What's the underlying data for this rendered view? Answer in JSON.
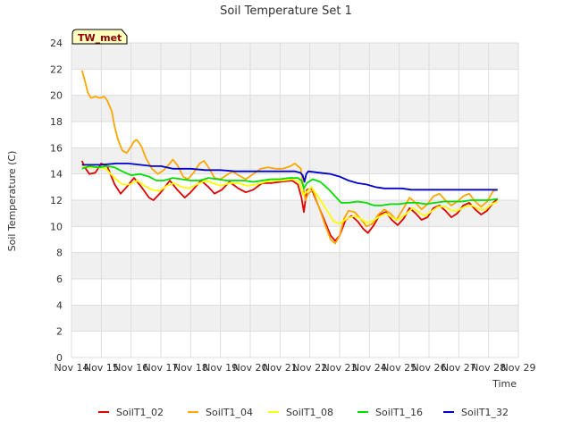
{
  "chart_data": {
    "type": "line",
    "title": "Soil Temperature Set 1",
    "xlabel": "Time",
    "ylabel": "Soil Temperature (C)",
    "badge": "TW_met",
    "xlim": [
      14,
      29
    ],
    "ylim": [
      0,
      24
    ],
    "x_ticks": [
      14,
      15,
      16,
      17,
      18,
      19,
      20,
      21,
      22,
      23,
      24,
      25,
      26,
      27,
      28,
      29
    ],
    "x_tick_labels": [
      "Nov 14",
      "Nov 15",
      "Nov 16",
      "Nov 17",
      "Nov 18",
      "Nov 19",
      "Nov 20",
      "Nov 21",
      "Nov 22",
      "Nov 23",
      "Nov 24",
      "Nov 25",
      "Nov 26",
      "Nov 27",
      "Nov 28",
      "Nov 29"
    ],
    "y_ticks": [
      0,
      2,
      4,
      6,
      8,
      10,
      12,
      14,
      16,
      18,
      20,
      22,
      24
    ],
    "y_tick_labels": [
      "0",
      "2",
      "4",
      "6",
      "8",
      "10",
      "12",
      "14",
      "16",
      "18",
      "20",
      "22",
      "24"
    ],
    "grid": true,
    "legend_placement": "bottom",
    "series": [
      {
        "name": "SoilT1_02",
        "color": "#dd0000",
        "points": [
          [
            14.35,
            15.0
          ],
          [
            14.45,
            14.5
          ],
          [
            14.6,
            14.0
          ],
          [
            14.8,
            14.1
          ],
          [
            15.0,
            14.8
          ],
          [
            15.2,
            14.6
          ],
          [
            15.45,
            13.2
          ],
          [
            15.65,
            12.5
          ],
          [
            15.85,
            13.0
          ],
          [
            16.1,
            13.7
          ],
          [
            16.35,
            13.0
          ],
          [
            16.6,
            12.2
          ],
          [
            16.75,
            12.0
          ],
          [
            17.0,
            12.6
          ],
          [
            17.3,
            13.5
          ],
          [
            17.55,
            12.8
          ],
          [
            17.8,
            12.2
          ],
          [
            18.0,
            12.6
          ],
          [
            18.35,
            13.5
          ],
          [
            18.6,
            13.0
          ],
          [
            18.8,
            12.5
          ],
          [
            19.05,
            12.8
          ],
          [
            19.3,
            13.4
          ],
          [
            19.6,
            12.9
          ],
          [
            19.85,
            12.6
          ],
          [
            20.1,
            12.8
          ],
          [
            20.4,
            13.3
          ],
          [
            20.7,
            13.3
          ],
          [
            21.0,
            13.4
          ],
          [
            21.4,
            13.5
          ],
          [
            21.6,
            13.2
          ],
          [
            21.72,
            12.2
          ],
          [
            21.8,
            11.1
          ],
          [
            21.9,
            12.8
          ],
          [
            22.05,
            12.9
          ],
          [
            22.3,
            11.5
          ],
          [
            22.5,
            10.4
          ],
          [
            22.7,
            9.3
          ],
          [
            22.85,
            8.9
          ],
          [
            23.0,
            9.3
          ],
          [
            23.2,
            10.5
          ],
          [
            23.4,
            10.8
          ],
          [
            23.6,
            10.4
          ],
          [
            23.8,
            9.8
          ],
          [
            23.95,
            9.5
          ],
          [
            24.15,
            10.1
          ],
          [
            24.35,
            10.9
          ],
          [
            24.55,
            11.1
          ],
          [
            24.75,
            10.5
          ],
          [
            24.95,
            10.1
          ],
          [
            25.15,
            10.6
          ],
          [
            25.35,
            11.4
          ],
          [
            25.55,
            11.0
          ],
          [
            25.75,
            10.5
          ],
          [
            25.95,
            10.7
          ],
          [
            26.15,
            11.4
          ],
          [
            26.35,
            11.6
          ],
          [
            26.55,
            11.2
          ],
          [
            26.75,
            10.7
          ],
          [
            26.95,
            11.0
          ],
          [
            27.15,
            11.6
          ],
          [
            27.35,
            11.8
          ],
          [
            27.55,
            11.3
          ],
          [
            27.75,
            10.9
          ],
          [
            27.95,
            11.2
          ],
          [
            28.15,
            11.8
          ],
          [
            28.3,
            12.1
          ]
        ]
      },
      {
        "name": "SoilT1_04",
        "color": "#ffa500",
        "points": [
          [
            14.35,
            21.9
          ],
          [
            14.45,
            21.1
          ],
          [
            14.55,
            20.2
          ],
          [
            14.65,
            19.8
          ],
          [
            14.8,
            19.9
          ],
          [
            14.95,
            19.8
          ],
          [
            15.1,
            19.9
          ],
          [
            15.2,
            19.6
          ],
          [
            15.35,
            18.8
          ],
          [
            15.45,
            17.6
          ],
          [
            15.55,
            16.7
          ],
          [
            15.7,
            15.8
          ],
          [
            15.85,
            15.6
          ],
          [
            16.0,
            16.1
          ],
          [
            16.1,
            16.5
          ],
          [
            16.2,
            16.6
          ],
          [
            16.35,
            16.1
          ],
          [
            16.5,
            15.2
          ],
          [
            16.7,
            14.4
          ],
          [
            16.9,
            14.0
          ],
          [
            17.1,
            14.3
          ],
          [
            17.3,
            14.8
          ],
          [
            17.4,
            15.1
          ],
          [
            17.55,
            14.7
          ],
          [
            17.75,
            13.8
          ],
          [
            17.9,
            13.6
          ],
          [
            18.1,
            14.1
          ],
          [
            18.3,
            14.8
          ],
          [
            18.45,
            15.0
          ],
          [
            18.6,
            14.5
          ],
          [
            18.8,
            13.7
          ],
          [
            19.0,
            13.6
          ],
          [
            19.2,
            13.9
          ],
          [
            19.4,
            14.2
          ],
          [
            19.6,
            13.9
          ],
          [
            19.85,
            13.6
          ],
          [
            20.1,
            14.0
          ],
          [
            20.35,
            14.4
          ],
          [
            20.6,
            14.5
          ],
          [
            20.85,
            14.4
          ],
          [
            21.1,
            14.4
          ],
          [
            21.35,
            14.6
          ],
          [
            21.5,
            14.8
          ],
          [
            21.6,
            14.6
          ],
          [
            21.7,
            14.4
          ],
          [
            21.75,
            13.5
          ],
          [
            21.85,
            12.0
          ],
          [
            21.95,
            12.5
          ],
          [
            22.1,
            12.8
          ],
          [
            22.3,
            11.5
          ],
          [
            22.5,
            10.2
          ],
          [
            22.7,
            9.0
          ],
          [
            22.85,
            8.7
          ],
          [
            23.0,
            9.3
          ],
          [
            23.15,
            10.6
          ],
          [
            23.3,
            11.2
          ],
          [
            23.5,
            11.1
          ],
          [
            23.7,
            10.6
          ],
          [
            23.9,
            10.0
          ],
          [
            24.1,
            10.2
          ],
          [
            24.3,
            10.9
          ],
          [
            24.5,
            11.3
          ],
          [
            24.7,
            11.0
          ],
          [
            24.9,
            10.5
          ],
          [
            25.1,
            11.2
          ],
          [
            25.35,
            12.2
          ],
          [
            25.55,
            11.8
          ],
          [
            25.75,
            11.3
          ],
          [
            25.95,
            11.7
          ],
          [
            26.15,
            12.3
          ],
          [
            26.35,
            12.5
          ],
          [
            26.55,
            12.0
          ],
          [
            26.75,
            11.6
          ],
          [
            26.95,
            11.9
          ],
          [
            27.15,
            12.3
          ],
          [
            27.35,
            12.5
          ],
          [
            27.55,
            11.9
          ],
          [
            27.75,
            11.5
          ],
          [
            27.95,
            11.9
          ],
          [
            28.15,
            12.7
          ],
          [
            28.3,
            12.8
          ]
        ]
      },
      {
        "name": "SoilT1_08",
        "color": "#ffff00",
        "points": [
          [
            14.35,
            14.6
          ],
          [
            14.6,
            14.5
          ],
          [
            14.9,
            14.5
          ],
          [
            15.15,
            14.4
          ],
          [
            15.4,
            13.8
          ],
          [
            15.7,
            13.2
          ],
          [
            15.95,
            13.2
          ],
          [
            16.2,
            13.5
          ],
          [
            16.45,
            13.1
          ],
          [
            16.7,
            12.8
          ],
          [
            16.95,
            12.7
          ],
          [
            17.2,
            13.1
          ],
          [
            17.45,
            13.3
          ],
          [
            17.7,
            13.0
          ],
          [
            17.95,
            12.9
          ],
          [
            18.2,
            13.2
          ],
          [
            18.5,
            13.5
          ],
          [
            18.75,
            13.3
          ],
          [
            19.0,
            13.1
          ],
          [
            19.3,
            13.3
          ],
          [
            19.6,
            13.3
          ],
          [
            19.9,
            13.1
          ],
          [
            20.2,
            13.2
          ],
          [
            20.5,
            13.4
          ],
          [
            20.8,
            13.5
          ],
          [
            21.1,
            13.5
          ],
          [
            21.4,
            13.6
          ],
          [
            21.65,
            13.4
          ],
          [
            21.78,
            12.4
          ],
          [
            21.88,
            12.6
          ],
          [
            22.05,
            13.0
          ],
          [
            22.3,
            12.2
          ],
          [
            22.55,
            11.3
          ],
          [
            22.8,
            10.4
          ],
          [
            23.0,
            10.2
          ],
          [
            23.25,
            10.6
          ],
          [
            23.5,
            10.8
          ],
          [
            23.7,
            10.6
          ],
          [
            23.9,
            10.3
          ],
          [
            24.1,
            10.4
          ],
          [
            24.3,
            10.7
          ],
          [
            24.55,
            11.0
          ],
          [
            24.75,
            10.7
          ],
          [
            24.95,
            10.5
          ],
          [
            25.2,
            10.9
          ],
          [
            25.45,
            11.4
          ],
          [
            25.65,
            11.1
          ],
          [
            25.85,
            10.8
          ],
          [
            26.05,
            11.1
          ],
          [
            26.3,
            11.5
          ],
          [
            26.55,
            11.5
          ],
          [
            26.75,
            11.2
          ],
          [
            26.95,
            11.2
          ],
          [
            27.2,
            11.5
          ],
          [
            27.45,
            11.6
          ],
          [
            27.7,
            11.3
          ],
          [
            27.9,
            11.3
          ],
          [
            28.1,
            11.7
          ],
          [
            28.3,
            11.9
          ]
        ]
      },
      {
        "name": "SoilT1_16",
        "color": "#00dd00",
        "points": [
          [
            14.35,
            14.4
          ],
          [
            14.6,
            14.6
          ],
          [
            14.9,
            14.5
          ],
          [
            15.2,
            14.6
          ],
          [
            15.45,
            14.5
          ],
          [
            15.7,
            14.2
          ],
          [
            16.0,
            13.9
          ],
          [
            16.3,
            14.0
          ],
          [
            16.6,
            13.8
          ],
          [
            16.85,
            13.5
          ],
          [
            17.1,
            13.5
          ],
          [
            17.4,
            13.7
          ],
          [
            17.7,
            13.6
          ],
          [
            18.0,
            13.5
          ],
          [
            18.3,
            13.5
          ],
          [
            18.6,
            13.7
          ],
          [
            18.9,
            13.6
          ],
          [
            19.2,
            13.5
          ],
          [
            19.5,
            13.5
          ],
          [
            19.8,
            13.5
          ],
          [
            20.1,
            13.4
          ],
          [
            20.4,
            13.5
          ],
          [
            20.7,
            13.6
          ],
          [
            21.0,
            13.6
          ],
          [
            21.3,
            13.7
          ],
          [
            21.6,
            13.7
          ],
          [
            21.72,
            13.5
          ],
          [
            21.8,
            12.9
          ],
          [
            21.9,
            13.3
          ],
          [
            22.1,
            13.6
          ],
          [
            22.35,
            13.4
          ],
          [
            22.6,
            12.9
          ],
          [
            22.85,
            12.3
          ],
          [
            23.05,
            11.8
          ],
          [
            23.3,
            11.8
          ],
          [
            23.6,
            11.9
          ],
          [
            23.9,
            11.8
          ],
          [
            24.15,
            11.6
          ],
          [
            24.4,
            11.6
          ],
          [
            24.7,
            11.7
          ],
          [
            25.0,
            11.7
          ],
          [
            25.3,
            11.8
          ],
          [
            25.6,
            11.8
          ],
          [
            25.9,
            11.7
          ],
          [
            26.2,
            11.8
          ],
          [
            26.5,
            11.9
          ],
          [
            26.8,
            11.9
          ],
          [
            27.1,
            11.9
          ],
          [
            27.4,
            12.0
          ],
          [
            27.7,
            12.0
          ],
          [
            28.0,
            12.0
          ],
          [
            28.3,
            12.1
          ]
        ]
      },
      {
        "name": "SoilT1_32",
        "color": "#0000cc",
        "points": [
          [
            14.35,
            14.7
          ],
          [
            15.0,
            14.7
          ],
          [
            15.5,
            14.8
          ],
          [
            15.9,
            14.8
          ],
          [
            16.3,
            14.7
          ],
          [
            16.7,
            14.6
          ],
          [
            17.0,
            14.6
          ],
          [
            17.4,
            14.4
          ],
          [
            18.0,
            14.4
          ],
          [
            18.5,
            14.3
          ],
          [
            19.0,
            14.3
          ],
          [
            19.5,
            14.2
          ],
          [
            20.0,
            14.2
          ],
          [
            20.5,
            14.2
          ],
          [
            21.0,
            14.2
          ],
          [
            21.5,
            14.2
          ],
          [
            21.68,
            14.1
          ],
          [
            21.76,
            13.9
          ],
          [
            21.82,
            13.4
          ],
          [
            21.88,
            14.0
          ],
          [
            21.95,
            14.2
          ],
          [
            22.3,
            14.1
          ],
          [
            22.7,
            14.0
          ],
          [
            23.0,
            13.8
          ],
          [
            23.3,
            13.5
          ],
          [
            23.6,
            13.3
          ],
          [
            23.9,
            13.2
          ],
          [
            24.2,
            13.0
          ],
          [
            24.5,
            12.9
          ],
          [
            24.8,
            12.9
          ],
          [
            25.1,
            12.9
          ],
          [
            25.4,
            12.8
          ],
          [
            25.7,
            12.8
          ],
          [
            26.0,
            12.8
          ],
          [
            26.4,
            12.8
          ],
          [
            26.8,
            12.8
          ],
          [
            27.2,
            12.8
          ],
          [
            27.6,
            12.8
          ],
          [
            28.0,
            12.8
          ],
          [
            28.3,
            12.8
          ]
        ]
      }
    ]
  }
}
